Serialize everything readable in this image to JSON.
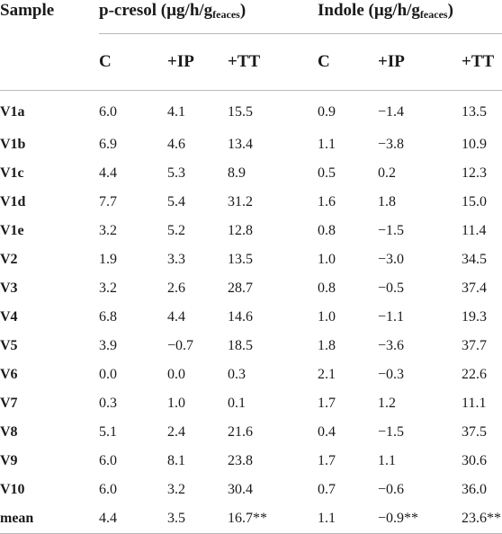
{
  "header": {
    "sample_label": "Sample",
    "groups": [
      {
        "name": "p-cresol (µg/h/g",
        "sub": "feaces",
        "close": ")"
      },
      {
        "name": "Indole (µg/h/g",
        "sub": "feaces",
        "close": ")"
      }
    ],
    "subcolumns": [
      "C",
      "+IP",
      "+TT",
      "C",
      "+IP",
      "+TT"
    ]
  },
  "rows": [
    {
      "sample": "V1a",
      "values": [
        "6.0",
        "4.1",
        "15.5",
        "0.9",
        "−1.4",
        "13.5"
      ]
    },
    {
      "sample": "V1b",
      "values": [
        "6.9",
        "4.6",
        "13.4",
        "1.1",
        "−3.8",
        "10.9"
      ]
    },
    {
      "sample": "V1c",
      "values": [
        "4.4",
        "5.3",
        "8.9",
        "0.5",
        "0.2",
        "12.3"
      ]
    },
    {
      "sample": "V1d",
      "values": [
        "7.7",
        "5.4",
        "31.2",
        "1.6",
        "1.8",
        "15.0"
      ]
    },
    {
      "sample": "V1e",
      "values": [
        "3.2",
        "5.2",
        "12.8",
        "0.8",
        "−1.5",
        "11.4"
      ]
    },
    {
      "sample": "V2",
      "values": [
        "1.9",
        "3.3",
        "13.5",
        "1.0",
        "−3.0",
        "34.5"
      ]
    },
    {
      "sample": "V3",
      "values": [
        "3.2",
        "2.6",
        "28.7",
        "0.8",
        "−0.5",
        "37.4"
      ]
    },
    {
      "sample": "V4",
      "values": [
        "6.8",
        "4.4",
        "14.6",
        "1.0",
        "−1.1",
        "19.3"
      ]
    },
    {
      "sample": "V5",
      "values": [
        "3.9",
        "−0.7",
        "18.5",
        "1.8",
        "−3.6",
        "37.7"
      ]
    },
    {
      "sample": "V6",
      "values": [
        "0.0",
        "0.0",
        "0.3",
        "2.1",
        "−0.3",
        "22.6"
      ]
    },
    {
      "sample": "V7",
      "values": [
        "0.3",
        "1.0",
        "0.1",
        "1.7",
        "1.2",
        "11.1"
      ]
    },
    {
      "sample": "V8",
      "values": [
        "5.1",
        "2.4",
        "21.6",
        "0.4",
        "−1.5",
        "37.5"
      ]
    },
    {
      "sample": "V9",
      "values": [
        "6.0",
        "8.1",
        "23.8",
        "1.7",
        "1.1",
        "30.6"
      ]
    },
    {
      "sample": "V10",
      "values": [
        "6.0",
        "3.2",
        "30.4",
        "0.7",
        "−0.6",
        "36.0"
      ]
    },
    {
      "sample": "mean",
      "values": [
        "4.4",
        "3.5",
        "16.7**",
        "1.1",
        "−0.9**",
        "23.6**"
      ]
    }
  ]
}
